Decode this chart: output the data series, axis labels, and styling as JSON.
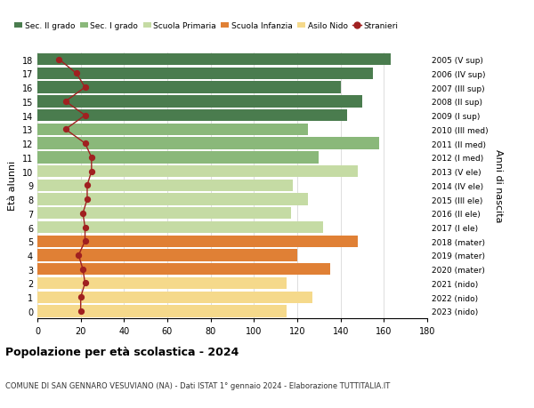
{
  "ages": [
    0,
    1,
    2,
    3,
    4,
    5,
    6,
    7,
    8,
    9,
    10,
    11,
    12,
    13,
    14,
    15,
    16,
    17,
    18
  ],
  "bar_values": [
    115,
    127,
    115,
    135,
    120,
    148,
    132,
    117,
    125,
    118,
    148,
    130,
    158,
    125,
    143,
    150,
    140,
    155,
    163
  ],
  "bar_colors": [
    "#f5d98b",
    "#f5d98b",
    "#f5d98b",
    "#e08035",
    "#e08035",
    "#e08035",
    "#c5dba4",
    "#c5dba4",
    "#c5dba4",
    "#c5dba4",
    "#c5dba4",
    "#8ab87a",
    "#8ab87a",
    "#8ab87a",
    "#4a7c4e",
    "#4a7c4e",
    "#4a7c4e",
    "#4a7c4e",
    "#4a7c4e"
  ],
  "stranieri_values": [
    20,
    20,
    22,
    21,
    19,
    22,
    22,
    21,
    23,
    23,
    25,
    25,
    22,
    13,
    22,
    13,
    22,
    18,
    10
  ],
  "right_labels": [
    "2023 (nido)",
    "2022 (nido)",
    "2021 (nido)",
    "2020 (mater)",
    "2019 (mater)",
    "2018 (mater)",
    "2017 (I ele)",
    "2016 (II ele)",
    "2015 (III ele)",
    "2014 (IV ele)",
    "2013 (V ele)",
    "2012 (I med)",
    "2011 (II med)",
    "2010 (III med)",
    "2009 (I sup)",
    "2008 (II sup)",
    "2007 (III sup)",
    "2006 (IV sup)",
    "2005 (V sup)"
  ],
  "legend_labels": [
    "Sec. II grado",
    "Sec. I grado",
    "Scuola Primaria",
    "Scuola Infanzia",
    "Asilo Nido",
    "Stranieri"
  ],
  "legend_colors": [
    "#4a7c4e",
    "#8ab87a",
    "#c5dba4",
    "#e08035",
    "#f5d98b",
    "#a02020"
  ],
  "title": "Popolazione per età scolastica - 2024",
  "subtitle": "COMUNE DI SAN GENNARO VESUVIANO (NA) - Dati ISTAT 1° gennaio 2024 - Elaborazione TUTTITALIA.IT",
  "ylabel": "Età alunni",
  "right_ylabel": "Anni di nascita",
  "xlim": [
    0,
    180
  ],
  "xticks": [
    0,
    20,
    40,
    60,
    80,
    100,
    120,
    140,
    160,
    180
  ],
  "bg_color": "#ffffff",
  "grid_color": "#dddddd",
  "bar_height": 0.85
}
